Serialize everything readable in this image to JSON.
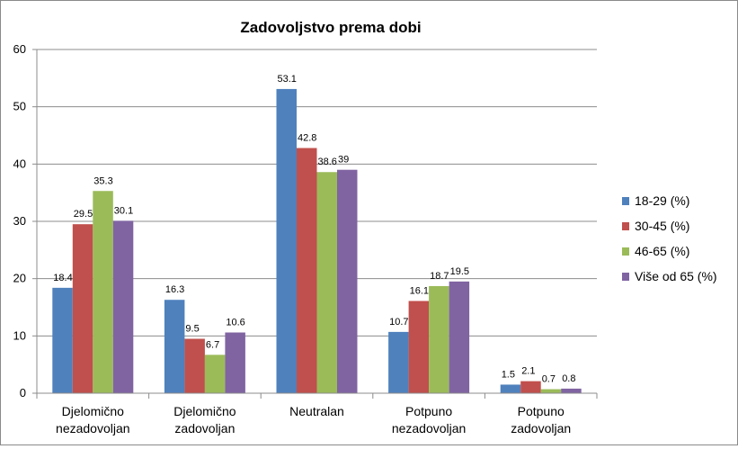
{
  "chart_data": {
    "type": "bar",
    "title": "Zadovoljstvo prema dobi",
    "xlabel": "",
    "ylabel": "",
    "ylim": [
      0,
      60
    ],
    "yticks": [
      0,
      10,
      20,
      30,
      40,
      50,
      60
    ],
    "grid": true,
    "legend_position": "right",
    "categories": [
      [
        "Djelomično",
        "nezadovoljan"
      ],
      [
        "Djelomično",
        "zadovoljan"
      ],
      [
        "Neutralan"
      ],
      [
        "Potpuno",
        "nezadovoljan"
      ],
      [
        "Potpuno",
        "zadovoljan"
      ]
    ],
    "series": [
      {
        "name": "18-29 (%)",
        "color": "#4f81bd",
        "values": [
          18.4,
          16.3,
          53.1,
          10.7,
          1.5
        ]
      },
      {
        "name": "30-45 (%)",
        "color": "#c0504d",
        "values": [
          29.5,
          9.5,
          42.8,
          16.1,
          2.1
        ]
      },
      {
        "name": "46-65 (%)",
        "color": "#9bbb59",
        "values": [
          35.3,
          6.7,
          38.6,
          18.7,
          0.7
        ]
      },
      {
        "name": "Više od 65 (%)",
        "color": "#8064a2",
        "values": [
          30.1,
          10.6,
          39,
          19.5,
          0.8
        ]
      }
    ]
  }
}
